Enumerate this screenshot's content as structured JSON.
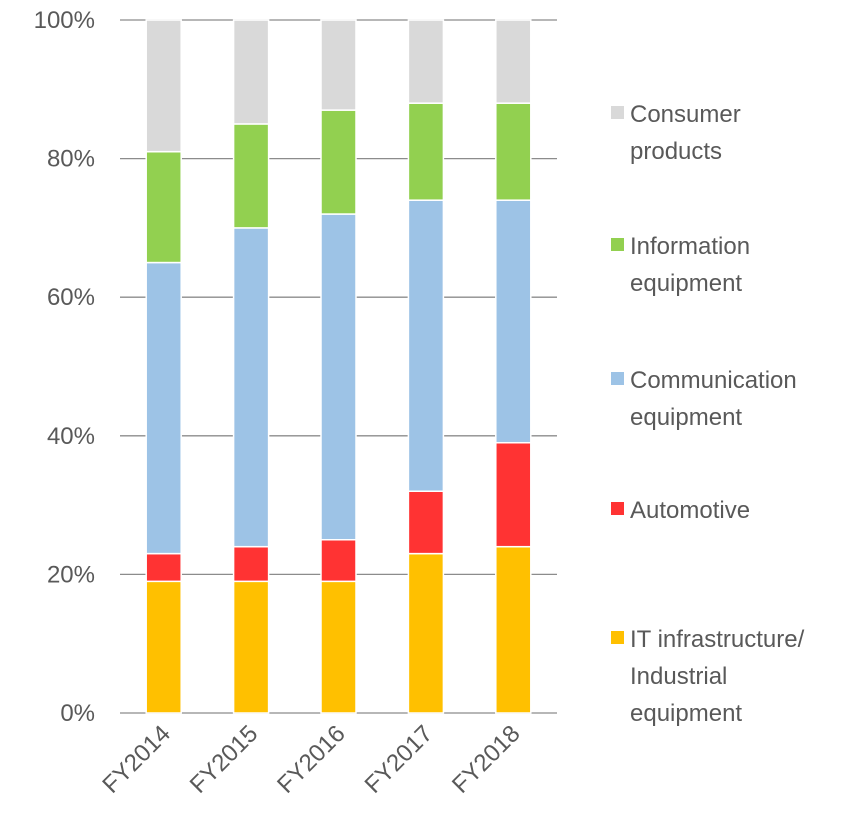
{
  "chart_data": {
    "type": "stacked_bar",
    "categories": [
      "FY2014",
      "FY2015",
      "FY2016",
      "FY2017",
      "FY2018"
    ],
    "series": [
      {
        "name": "IT infrastructure/ Industrial equipment",
        "color": "#ffc000",
        "values": [
          19,
          19,
          19,
          23,
          24
        ]
      },
      {
        "name": "Automotive",
        "color": "#ff3333",
        "values": [
          4,
          5,
          6,
          9,
          15
        ]
      },
      {
        "name": "Communication equipment",
        "color": "#9dc3e6",
        "values": [
          42,
          46,
          47,
          42,
          35
        ]
      },
      {
        "name": "Information equipment",
        "color": "#92d050",
        "values": [
          16,
          15,
          15,
          14,
          14
        ]
      },
      {
        "name": "Consumer products",
        "color": "#d9d9d9",
        "values": [
          19,
          15,
          13,
          12,
          12
        ]
      }
    ],
    "ylim": [
      0,
      100
    ],
    "yticks": [
      {
        "value": 0,
        "label": "0%"
      },
      {
        "value": 20,
        "label": "20%"
      },
      {
        "value": 40,
        "label": "40%"
      },
      {
        "value": 60,
        "label": "60%"
      },
      {
        "value": 80,
        "label": "80%"
      },
      {
        "value": 100,
        "label": "100%"
      }
    ],
    "grid": true,
    "legend": "right"
  }
}
